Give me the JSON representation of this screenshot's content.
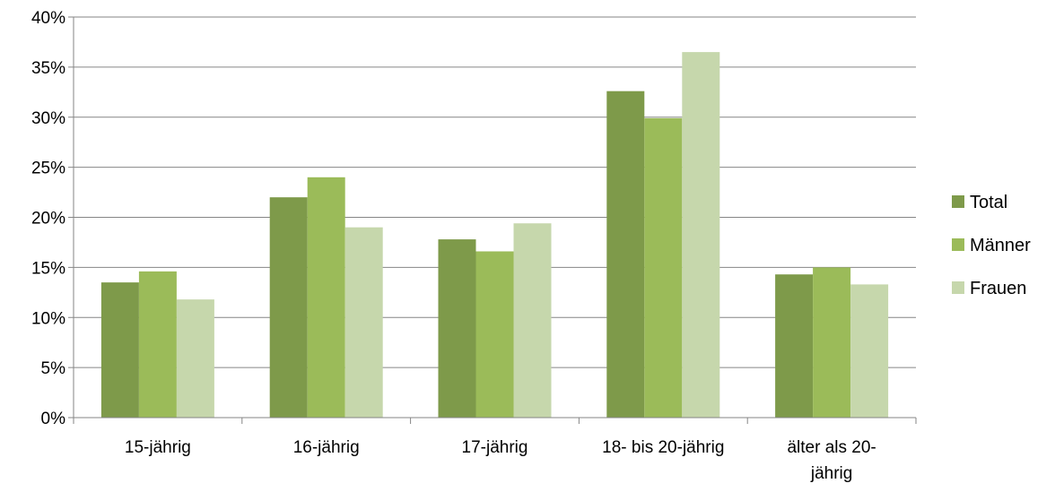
{
  "chart_data": {
    "type": "bar",
    "title": "",
    "xlabel": "",
    "ylabel": "",
    "categories": [
      [
        "15-jährig"
      ],
      [
        "16-jährig"
      ],
      [
        "17-jährig"
      ],
      [
        "18- bis 20-jährig"
      ],
      [
        "älter als 20-",
        "jährig"
      ]
    ],
    "series": [
      {
        "name": "Total",
        "color": "#7e9a4a",
        "values": [
          13.5,
          22.0,
          17.8,
          32.6,
          14.3
        ]
      },
      {
        "name": "Männer",
        "color": "#9bbb59",
        "values": [
          14.6,
          24.0,
          16.6,
          29.9,
          15.0
        ]
      },
      {
        "name": "Frauen",
        "color": "#c6d7ac",
        "values": [
          11.8,
          19.0,
          19.4,
          36.5,
          13.3
        ]
      }
    ],
    "yticks": [
      "0%",
      "5%",
      "10%",
      "15%",
      "20%",
      "25%",
      "30%",
      "35%",
      "40%"
    ],
    "ylim": [
      0,
      40
    ],
    "grid": true,
    "legend": "right"
  }
}
